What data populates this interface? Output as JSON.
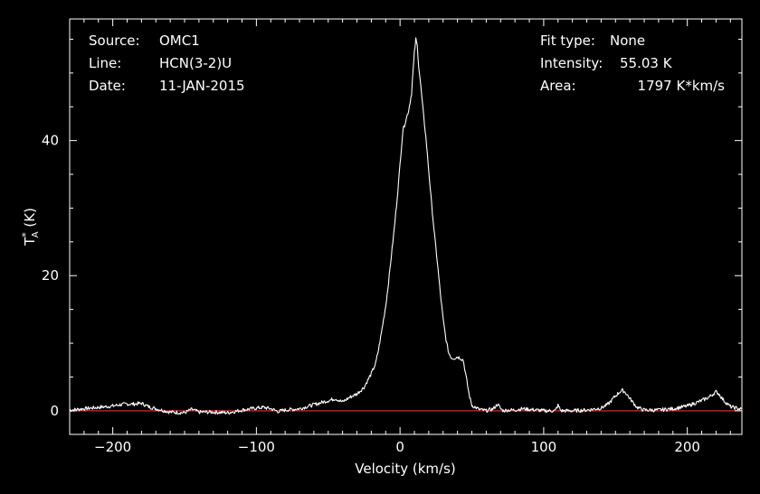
{
  "info": {
    "source_label": "Source:",
    "source_value": "OMC1",
    "line_label": "Line:",
    "line_value": "HCN(3-2)U",
    "date_label": "Date:",
    "date_value": "11-JAN-2015",
    "fit_label": "Fit type:",
    "fit_value": "None",
    "intensity_label": "Intensity:",
    "intensity_value": "55.03 K",
    "area_label": "Area:",
    "area_value": "1797 K*km/s"
  },
  "colors": {
    "background": "#000000",
    "axes": "#ffffff",
    "spectrum": "#ffffff",
    "baseline": "#b22222"
  },
  "chart_data": {
    "type": "line",
    "xlabel": "Velocity (km/s)",
    "ylabel": "T*A (K)",
    "xlim": [
      -230,
      238
    ],
    "ylim": [
      -3.5,
      58
    ],
    "xticks": [
      -200,
      -100,
      0,
      100,
      200
    ],
    "xticklabels": [
      "−200",
      "−100",
      "0",
      "100",
      "200"
    ],
    "yticks": [
      0,
      20,
      40
    ],
    "yticklabels": [
      "0",
      "20",
      "40"
    ],
    "grid": false,
    "baseline_y": 0,
    "series": [
      {
        "x": [
          -230,
          -220,
          -210,
          -200,
          -195,
          -190,
          -185,
          -180,
          -175,
          -170,
          -160,
          -150,
          -145,
          -140,
          -130,
          -120,
          -110,
          -100,
          -95,
          -90,
          -85,
          -80,
          -70,
          -60,
          -50,
          -45,
          -40,
          -35,
          -30,
          -25,
          -20,
          -17,
          -15,
          -13,
          -10,
          -8,
          -6,
          -4,
          -2,
          0,
          2,
          4,
          6,
          8,
          10,
          11,
          12,
          13,
          14,
          16,
          18,
          20,
          22,
          24,
          26,
          28,
          30,
          32,
          34,
          36,
          38,
          40,
          42,
          44,
          46,
          48,
          50,
          55,
          60,
          65,
          68,
          70,
          72,
          75,
          80,
          85,
          90,
          100,
          108,
          110,
          112,
          120,
          130,
          140,
          145,
          150,
          153,
          155,
          157,
          160,
          165,
          170,
          180,
          190,
          200,
          210,
          215,
          218,
          220,
          222,
          225,
          230,
          238
        ],
        "values": [
          0.1,
          0.3,
          0.5,
          0.7,
          0.9,
          1.0,
          1.0,
          1.1,
          0.6,
          0.3,
          -0.2,
          -0.3,
          0.2,
          -0.2,
          -0.2,
          -0.3,
          0.1,
          0.4,
          0.5,
          0.3,
          -0.1,
          0.1,
          0.3,
          0.9,
          1.5,
          1.8,
          1.3,
          2.0,
          2.5,
          3.5,
          5.5,
          7.0,
          9.0,
          11.5,
          15.5,
          19.0,
          23.0,
          27.0,
          31.5,
          36.5,
          41.5,
          43.0,
          44.5,
          47.0,
          53.0,
          55.0,
          54.0,
          51.0,
          49.0,
          44.5,
          40.5,
          35.5,
          30.5,
          26.0,
          22.0,
          17.5,
          13.5,
          10.5,
          8.5,
          7.8,
          7.8,
          8.0,
          7.8,
          7.5,
          5.0,
          2.5,
          0.8,
          0.2,
          0.0,
          0.3,
          1.0,
          0.3,
          0.0,
          0.1,
          0.1,
          0.3,
          0.2,
          0.0,
          0.0,
          0.8,
          0.0,
          0.0,
          0.1,
          0.4,
          1.0,
          2.2,
          2.8,
          3.0,
          2.7,
          1.8,
          0.5,
          0.1,
          0.1,
          0.3,
          0.7,
          1.5,
          2.0,
          2.5,
          2.8,
          2.5,
          1.6,
          0.6,
          0.2
        ]
      }
    ]
  }
}
